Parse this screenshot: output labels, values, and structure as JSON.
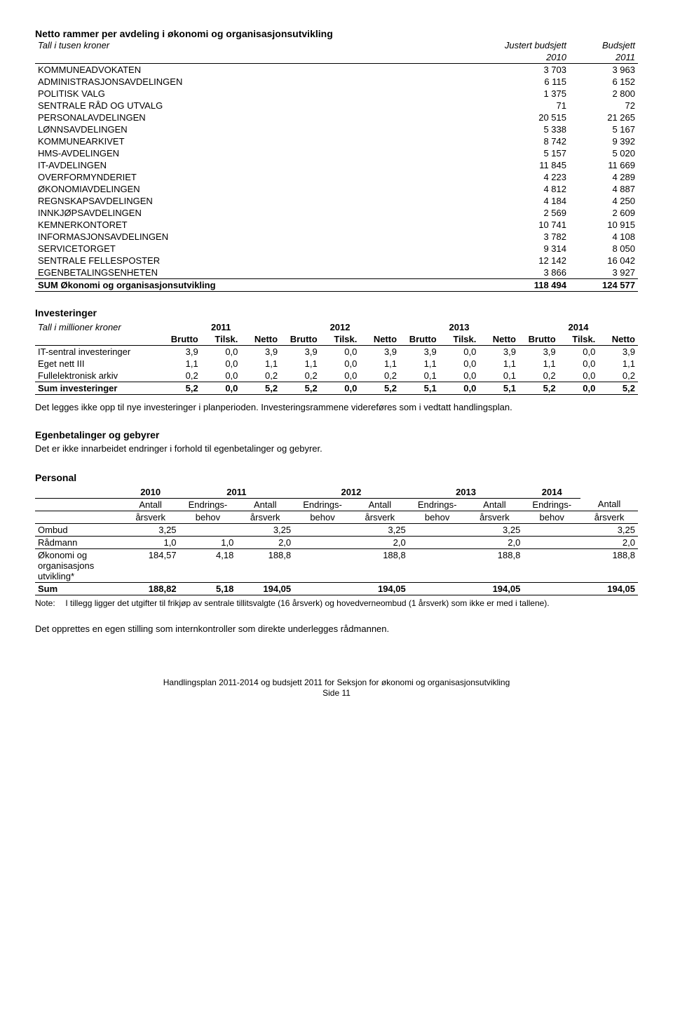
{
  "table1": {
    "title": "Netto rammer per avdeling i økonomi og organisasjonsutvikling",
    "unit_label": "Tall i tusen kroner",
    "col1_heading_top": "Justert budsjett",
    "col2_heading_top": "Budsjett",
    "col1_heading_year": "2010",
    "col2_heading_year": "2011",
    "rows": [
      {
        "label": "KOMMUNEADVOKATEN",
        "v1": "3 703",
        "v2": "3 963"
      },
      {
        "label": "ADMINISTRASJONSAVDELINGEN",
        "v1": "6 115",
        "v2": "6 152"
      },
      {
        "label": "POLITISK VALG",
        "v1": "1 375",
        "v2": "2 800"
      },
      {
        "label": "SENTRALE RÅD OG UTVALG",
        "v1": "71",
        "v2": "72"
      },
      {
        "label": "PERSONALAVDELINGEN",
        "v1": "20 515",
        "v2": "21 265"
      },
      {
        "label": "LØNNSAVDELINGEN",
        "v1": "5 338",
        "v2": "5 167"
      },
      {
        "label": "KOMMUNEARKIVET",
        "v1": "8 742",
        "v2": "9 392"
      },
      {
        "label": "HMS-AVDELINGEN",
        "v1": "5 157",
        "v2": "5 020"
      },
      {
        "label": "IT-AVDELINGEN",
        "v1": "11 845",
        "v2": "11 669"
      },
      {
        "label": "OVERFORMYNDERIET",
        "v1": "4 223",
        "v2": "4 289"
      },
      {
        "label": "ØKONOMIAVDELINGEN",
        "v1": "4 812",
        "v2": "4 887"
      },
      {
        "label": "REGNSKAPSAVDELINGEN",
        "v1": "4 184",
        "v2": "4 250"
      },
      {
        "label": "INNKJØPSAVDELINGEN",
        "v1": "2 569",
        "v2": "2 609"
      },
      {
        "label": "KEMNERKONTORET",
        "v1": "10 741",
        "v2": "10 915"
      },
      {
        "label": "INFORMASJONSAVDELINGEN",
        "v1": "3 782",
        "v2": "4 108"
      },
      {
        "label": "SERVICETORGET",
        "v1": "9 314",
        "v2": "8 050"
      },
      {
        "label": "SENTRALE FELLESPOSTER",
        "v1": "12 142",
        "v2": "16 042"
      },
      {
        "label": "EGENBETALINGSENHETEN",
        "v1": "3 866",
        "v2": "3 927"
      }
    ],
    "sum_label": "SUM Økonomi og organisasjonsutvikling",
    "sum_v1": "118 494",
    "sum_v2": "124 577"
  },
  "invest": {
    "heading": "Investeringer",
    "unit_label": "Tall i millioner kroner",
    "years": [
      "2011",
      "2012",
      "2013",
      "2014"
    ],
    "sub_cols": [
      "Brutto",
      "Tilsk.",
      "Netto"
    ],
    "rows": [
      {
        "label": "IT-sentral investeringer",
        "vals": [
          "3,9",
          "0,0",
          "3,9",
          "3,9",
          "0,0",
          "3,9",
          "3,9",
          "0,0",
          "3,9",
          "3,9",
          "0,0",
          "3,9"
        ]
      },
      {
        "label": "Eget nett III",
        "vals": [
          "1,1",
          "0,0",
          "1,1",
          "1,1",
          "0,0",
          "1,1",
          "1,1",
          "0,0",
          "1,1",
          "1,1",
          "0,0",
          "1,1"
        ]
      },
      {
        "label": "Fullelektronisk arkiv",
        "vals": [
          "0,2",
          "0,0",
          "0,2",
          "0,2",
          "0,0",
          "0,2",
          "0,1",
          "0,0",
          "0,1",
          "0,2",
          "0,0",
          "0,2"
        ]
      }
    ],
    "sum_label": "Sum investeringer",
    "sum_vals": [
      "5,2",
      "0,0",
      "5,2",
      "5,2",
      "0,0",
      "5,2",
      "5,1",
      "0,0",
      "5,1",
      "5,2",
      "0,0",
      "5,2"
    ],
    "para": "Det legges ikke opp til nye investeringer i planperioden. Investeringsrammene videreføres som i vedtatt handlingsplan."
  },
  "fees": {
    "heading": "Egenbetalinger og gebyrer",
    "text": "Det er ikke innarbeidet endringer i forhold til egenbetalinger og gebyrer."
  },
  "personal": {
    "heading": "Personal",
    "years": [
      "2010",
      "2011",
      "2012",
      "2013",
      "2014"
    ],
    "sub_antall": "Antall",
    "sub_endrings": "Endrings-",
    "sub_arsverk": "årsverk",
    "sub_behov": "behov",
    "rows": [
      {
        "label": "Ombud",
        "c": [
          "3,25",
          "",
          "3,25",
          "",
          "3,25",
          "",
          "3,25",
          "",
          "3,25"
        ]
      },
      {
        "label": "Rådmann",
        "c": [
          "1,0",
          "1,0",
          "2,0",
          "",
          "2,0",
          "",
          "2,0",
          "",
          "2,0"
        ]
      },
      {
        "label": "Økonomi og organisasjons utvikling*",
        "c": [
          "184,57",
          "4,18",
          "188,8",
          "",
          "188,8",
          "",
          "188,8",
          "",
          "188,8"
        ]
      }
    ],
    "sum_label": "Sum",
    "sum_c": [
      "188,82",
      "5,18",
      "194,05",
      "",
      "194,05",
      "",
      "194,05",
      "",
      "194,05"
    ],
    "note_label": "Note:",
    "note_text": "I tillegg ligger det utgifter til frikjøp av sentrale tillitsvalgte (16 årsverk) og hovedverneombud (1 årsverk) som ikke er med i tallene).",
    "para": "Det opprettes en egen stilling som internkontroller som direkte underlegges rådmannen."
  },
  "footer": {
    "line1": "Handlingsplan 2011-2014 og budsjett 2011 for Seksjon for økonomi og organisasjonsutvikling",
    "line2": "Side 11"
  }
}
